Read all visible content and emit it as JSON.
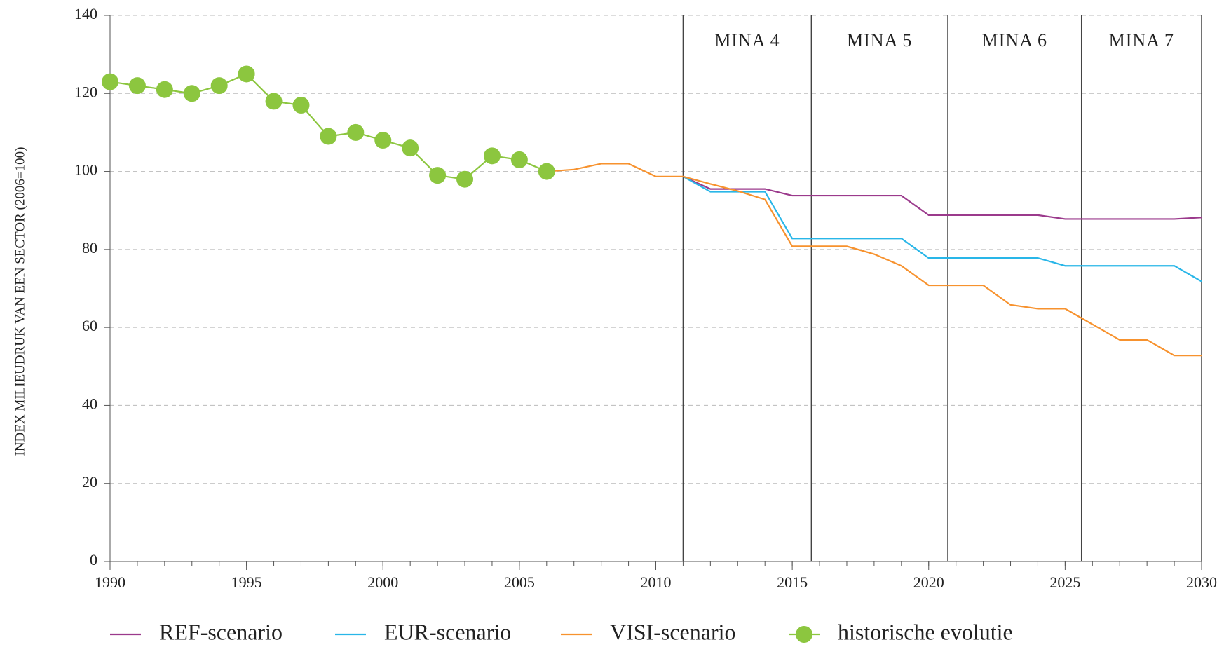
{
  "chart_data": {
    "type": "line",
    "y_label": "INDEX MILIEUDRUK VAN EEN SECTOR (2006=100)",
    "x": [
      1990,
      1991,
      1992,
      1993,
      1994,
      1995,
      1996,
      1997,
      1998,
      1999,
      2000,
      2001,
      2002,
      2003,
      2004,
      2005,
      2006,
      2007,
      2008,
      2009,
      2010,
      2011,
      2012,
      2013,
      2014,
      2015,
      2016,
      2017,
      2018,
      2019,
      2020,
      2021,
      2022,
      2023,
      2024,
      2025,
      2026,
      2027,
      2028,
      2029,
      2030
    ],
    "xlim": [
      1990,
      2030
    ],
    "xticks": [
      1990,
      1995,
      2000,
      2005,
      2010,
      2015,
      2020,
      2025,
      2030
    ],
    "ylim": [
      0,
      140
    ],
    "yticks": [
      0,
      20,
      40,
      60,
      80,
      100,
      120,
      140
    ],
    "grid": true,
    "period_labels": [
      "MINA 4",
      "MINA 5",
      "MINA 6",
      "MINA 7"
    ],
    "period_boundaries": [
      2011,
      2015.7,
      2020.7,
      2025.6,
      2030
    ],
    "series": [
      {
        "name": "REF-scenario",
        "color": "#9b3a8c",
        "values": [
          null,
          null,
          null,
          null,
          null,
          null,
          null,
          null,
          null,
          null,
          null,
          null,
          null,
          null,
          null,
          null,
          null,
          null,
          null,
          null,
          null,
          98.7,
          95.5,
          95.5,
          95.5,
          93.8,
          93.8,
          93.8,
          93.8,
          93.8,
          88.8,
          88.8,
          88.8,
          88.8,
          88.8,
          87.8,
          87.8,
          87.8,
          87.8,
          87.8,
          88.2
        ]
      },
      {
        "name": "EUR-scenario",
        "color": "#29b6e8",
        "values": [
          null,
          null,
          null,
          null,
          null,
          null,
          null,
          null,
          null,
          null,
          null,
          null,
          null,
          null,
          null,
          null,
          null,
          null,
          null,
          null,
          null,
          98.7,
          94.8,
          94.8,
          94.8,
          82.8,
          82.8,
          82.8,
          82.8,
          82.8,
          77.8,
          77.8,
          77.8,
          77.8,
          77.8,
          75.8,
          75.8,
          75.8,
          75.8,
          75.8,
          71.8
        ]
      },
      {
        "name": "VISI-scenario",
        "color": "#f7922e",
        "values": [
          null,
          null,
          null,
          null,
          null,
          null,
          null,
          null,
          null,
          null,
          null,
          null,
          null,
          null,
          null,
          null,
          100,
          100.5,
          102,
          102,
          98.7,
          98.7,
          96.8,
          95,
          92.8,
          80.8,
          80.8,
          80.8,
          78.8,
          75.8,
          70.8,
          70.8,
          70.8,
          65.8,
          64.8,
          64.8,
          60.8,
          56.8,
          56.8,
          52.8,
          52.8
        ]
      },
      {
        "name": "historische evolutie",
        "color": "#8cc63f",
        "markers": true,
        "values": [
          123,
          122,
          121,
          120,
          122,
          125,
          118,
          117,
          109,
          110,
          108,
          106,
          99,
          98,
          104,
          103,
          100,
          null,
          null,
          null,
          null,
          null,
          null,
          null,
          null,
          null,
          null,
          null,
          null,
          null,
          null,
          null,
          null,
          null,
          null,
          null,
          null,
          null,
          null,
          null,
          null
        ]
      }
    ]
  }
}
